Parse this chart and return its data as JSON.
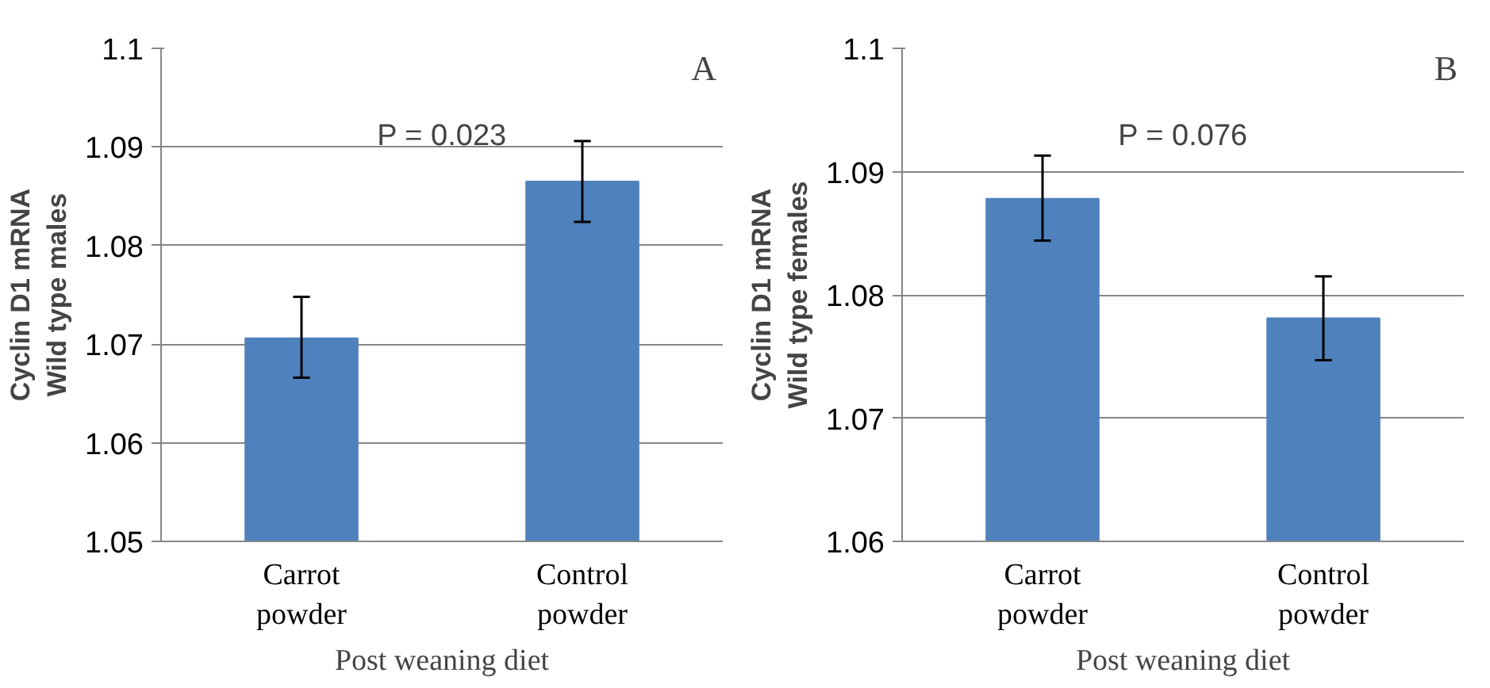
{
  "chart_data": [
    {
      "type": "bar",
      "categories": [
        "Carrot powder",
        "Control powder"
      ],
      "values": [
        1.0706,
        1.0865
      ],
      "errors": [
        [
          1.0666,
          1.0748
        ],
        [
          1.0824,
          1.0906
        ]
      ],
      "color": "#4f81bd",
      "ylim": [
        1.05,
        1.1
      ],
      "yticks": [
        1.05,
        1.06,
        1.07,
        1.08,
        1.09,
        1.1
      ],
      "grid": "y",
      "xlabel": "Post weaning diet",
      "ylabel": "Cyclin D1 mRNA\nWild type males",
      "annotations": [
        "A",
        "P = 0.023"
      ]
    },
    {
      "type": "bar",
      "categories": [
        "Carrot powder",
        "Control powder"
      ],
      "values": [
        1.0878,
        1.0781
      ],
      "errors": [
        [
          1.0844,
          1.0913
        ],
        [
          1.0747,
          1.0815
        ]
      ],
      "color": "#4f81bd",
      "ylim": [
        1.06,
        1.1
      ],
      "yticks": [
        1.06,
        1.07,
        1.08,
        1.09,
        1.1
      ],
      "grid": "y",
      "xlabel": "Post weaning diet",
      "ylabel": "Cyclin D1 mRNA\nWild type females",
      "annotations": [
        "B",
        "P = 0.076"
      ]
    }
  ]
}
